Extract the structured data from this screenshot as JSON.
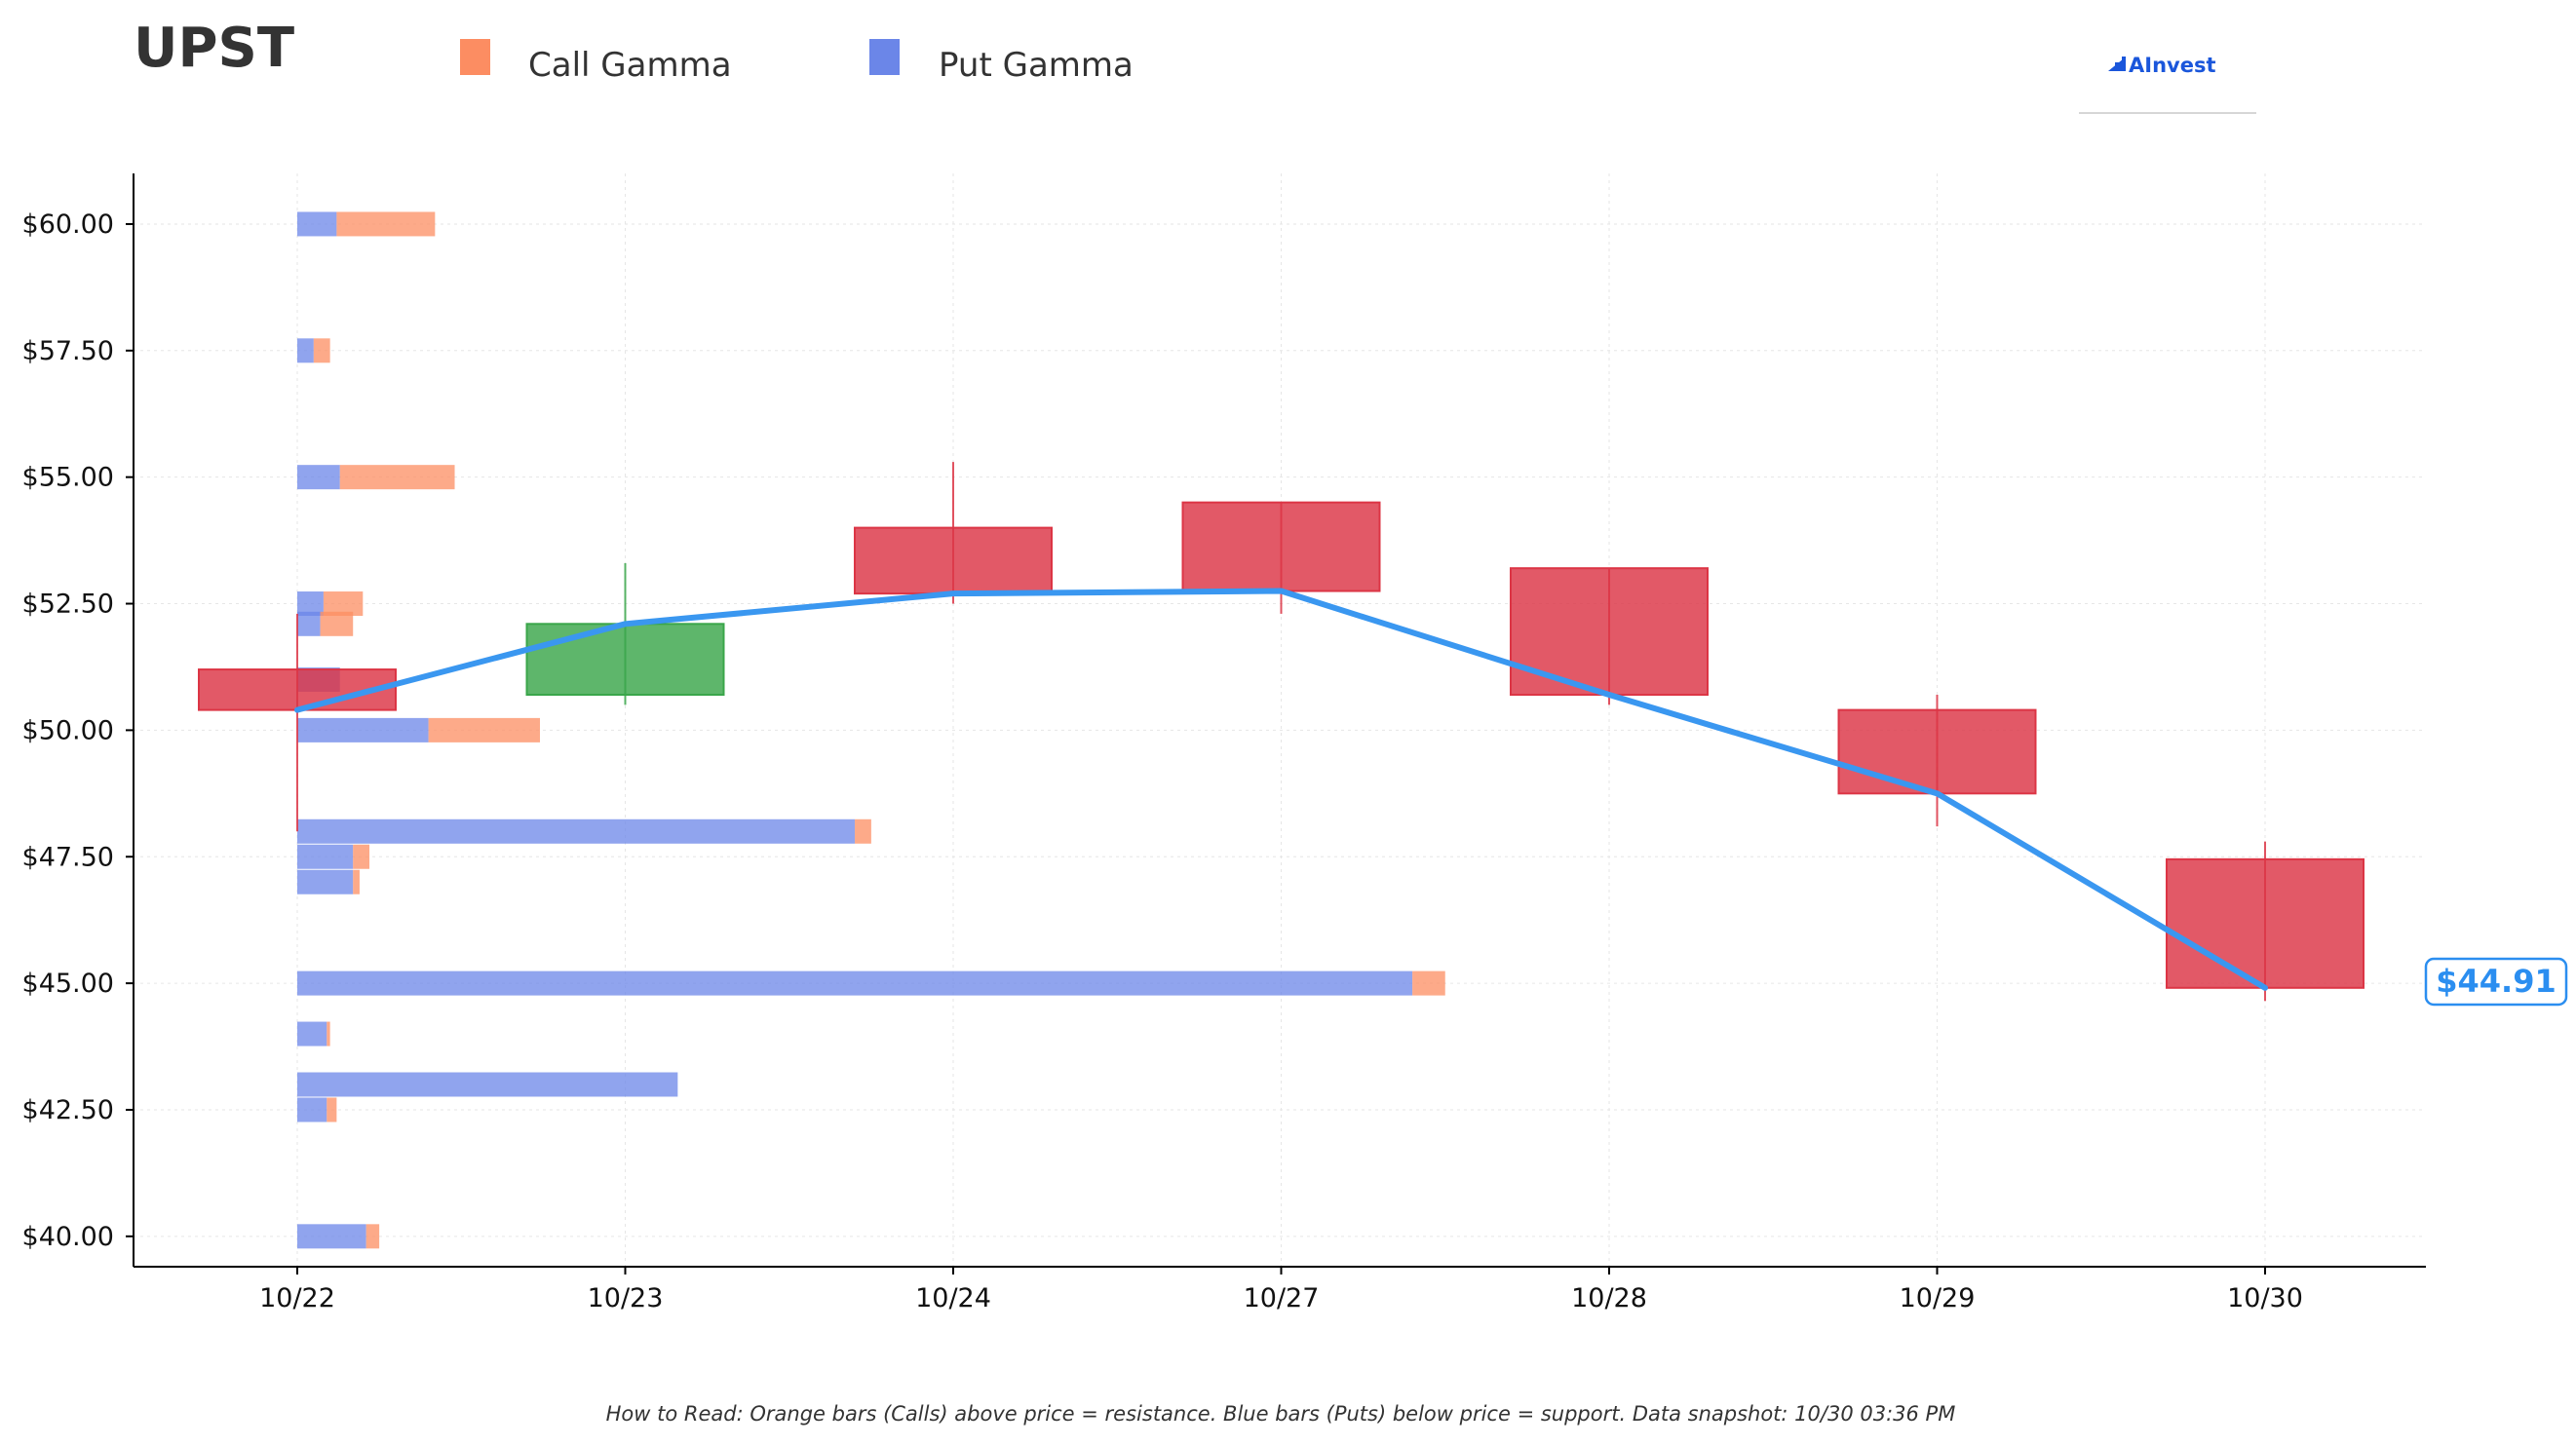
{
  "ticker": "UPST",
  "brand": {
    "name": "AInvest"
  },
  "legend": {
    "call_label": "Call Gamma",
    "put_label": "Put Gamma"
  },
  "colors": {
    "call": "#fc8d62",
    "put": "#6b86e8",
    "up": "#3aa64a",
    "down": "#dc3545",
    "line": "#3a97f0",
    "price_label": "#2b8ef0"
  },
  "current_price_label": "$44.91",
  "footnote": "How to Read: Orange bars (Calls) above price = resistance. Blue bars (Puts) below price = support. Data snapshot: 10/30 03:36 PM",
  "chart_data": {
    "type": "candlestick",
    "title": "UPST",
    "categories": [
      "10/22",
      "10/23",
      "10/24",
      "10/27",
      "10/28",
      "10/29",
      "10/30"
    ],
    "ylim": [
      39.4,
      61.0
    ],
    "yticks": [
      40.0,
      42.5,
      45.0,
      47.5,
      50.0,
      52.5,
      55.0,
      57.5,
      60.0
    ],
    "ytick_labels": [
      "$40.00",
      "$42.50",
      "$45.00",
      "$47.50",
      "$50.00",
      "$52.50",
      "$55.00",
      "$57.50",
      "$60.00"
    ],
    "grid": true,
    "legend_position": "top-left",
    "candles": [
      {
        "date": "10/22",
        "open": 51.2,
        "high": 52.3,
        "low": 48.0,
        "close": 50.4
      },
      {
        "date": "10/23",
        "open": 50.7,
        "high": 53.3,
        "low": 50.5,
        "close": 52.1
      },
      {
        "date": "10/24",
        "open": 54.0,
        "high": 55.3,
        "low": 52.5,
        "close": 52.7
      },
      {
        "date": "10/27",
        "open": 54.5,
        "high": 54.5,
        "low": 52.3,
        "close": 52.75
      },
      {
        "date": "10/28",
        "open": 53.2,
        "high": 53.2,
        "low": 50.5,
        "close": 50.7
      },
      {
        "date": "10/29",
        "open": 50.4,
        "high": 50.7,
        "low": 48.1,
        "close": 48.75
      },
      {
        "date": "10/30",
        "open": 47.45,
        "high": 47.8,
        "low": 44.65,
        "close": 44.91
      }
    ],
    "close_line": {
      "name": "Close",
      "values": [
        50.4,
        52.1,
        52.7,
        52.75,
        50.7,
        48.75,
        44.91
      ]
    },
    "gamma_exposure": {
      "x_unit": "days from 10/22",
      "strikes": [
        {
          "strike": 60.0,
          "put": 0.12,
          "call": 0.3
        },
        {
          "strike": 57.5,
          "put": 0.05,
          "call": 0.05
        },
        {
          "strike": 55.0,
          "put": 0.13,
          "call": 0.35
        },
        {
          "strike": 52.5,
          "put": 0.08,
          "call": 0.12
        },
        {
          "strike": 52.1,
          "put": 0.07,
          "call": 0.1
        },
        {
          "strike": 51.0,
          "put": 0.13,
          "call": 0.0
        },
        {
          "strike": 50.0,
          "put": 0.4,
          "call": 0.34
        },
        {
          "strike": 48.0,
          "put": 1.7,
          "call": 0.05
        },
        {
          "strike": 47.5,
          "put": 0.17,
          "call": 0.05
        },
        {
          "strike": 47.0,
          "put": 0.17,
          "call": 0.02
        },
        {
          "strike": 45.0,
          "put": 3.4,
          "call": 0.1
        },
        {
          "strike": 44.0,
          "put": 0.09,
          "call": 0.01
        },
        {
          "strike": 43.0,
          "put": 1.16,
          "call": 0.0
        },
        {
          "strike": 42.5,
          "put": 0.09,
          "call": 0.03
        },
        {
          "strike": 40.0,
          "put": 0.21,
          "call": 0.04
        }
      ]
    }
  }
}
